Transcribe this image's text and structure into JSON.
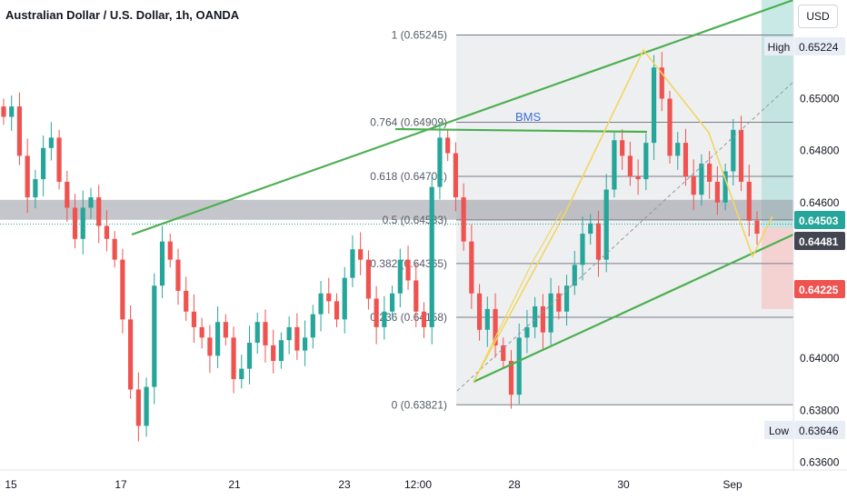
{
  "header": {
    "title": "Australian Dollar / U.S. Dollar, 1h, OANDA",
    "currency": "USD"
  },
  "chart_data": {
    "type": "candlestick",
    "symbol": "AUDUSD",
    "interval": "1h",
    "ylim": [
      0.6357,
      0.6538
    ],
    "y_ticks": [
      "0.65000",
      "0.64800",
      "0.64600",
      "0.64000",
      "0.63800",
      "0.63600"
    ],
    "x_ticks": [
      "15",
      "17",
      "21",
      "23",
      "12:00",
      "28",
      "30",
      "Sep"
    ],
    "price_close": [
      0.6493,
      0.6497,
      0.6478,
      0.6462,
      0.6469,
      0.6481,
      0.6485,
      0.6468,
      0.6458,
      0.6446,
      0.6458,
      0.6462,
      0.6451,
      0.6446,
      0.6438,
      0.6415,
      0.6388,
      0.6374,
      0.6389,
      0.6428,
      0.6445,
      0.6438,
      0.6426,
      0.6418,
      0.6412,
      0.6408,
      0.6401,
      0.6414,
      0.6408,
      0.6392,
      0.6396,
      0.6406,
      0.6414,
      0.6405,
      0.6399,
      0.6407,
      0.6412,
      0.6403,
      0.6408,
      0.6417,
      0.6425,
      0.6422,
      0.6415,
      0.6431,
      0.6442,
      0.6438,
      0.6423,
      0.6412,
      0.6418,
      0.6425,
      0.6438,
      0.643,
      0.6418,
      0.6412,
      0.6466,
      0.6485,
      0.6479,
      0.6462,
      0.6445,
      0.6425,
      0.6411,
      0.6419,
      0.6405,
      0.6399,
      0.6386,
      0.6408,
      0.6412,
      0.642,
      0.641,
      0.6425,
      0.6418,
      0.6428,
      0.6436,
      0.6448,
      0.6452,
      0.6438,
      0.6465,
      0.6484,
      0.6478,
      0.647,
      0.6469,
      0.6483,
      0.6512,
      0.65,
      0.6478,
      0.6483,
      0.647,
      0.6463,
      0.6475,
      0.6468,
      0.646,
      0.6472,
      0.6488,
      0.6468,
      0.6453,
      0.6448
    ],
    "levels": [
      {
        "name": "High",
        "label": "High",
        "value": "0.65224"
      },
      {
        "name": "Last",
        "label": "",
        "value": "0.64503"
      },
      {
        "name": "Bid",
        "label": "",
        "value": "0.64481"
      },
      {
        "name": "Target",
        "label": "",
        "value": "0.64225"
      },
      {
        "name": "Low",
        "label": "Low",
        "value": "0.63646"
      }
    ],
    "fibonacci": [
      {
        "label": "1 (0.65245)",
        "value": 0.65245
      },
      {
        "label": "0.764 (0.64909)",
        "value": 0.64909
      },
      {
        "label": "0.618 (0.64701)",
        "value": 0.64701
      },
      {
        "label": "0.5 (0.64533)",
        "value": 0.64533
      },
      {
        "label": "0.382 (0.64365)",
        "value": 0.64365
      },
      {
        "label": "0.236 (0.64158)",
        "value": 0.64158
      },
      {
        "label": "0 (0.63821)",
        "value": 0.63821
      }
    ],
    "annotations": [
      {
        "text": "BMS"
      }
    ],
    "colors": {
      "up": "#26a69a",
      "down": "#ef5350",
      "trend": "#4caf50",
      "pattern": "#f1d660",
      "sr_zone": "#9598a1",
      "bms": "#3b6fd8",
      "last_tag": "#26a69a",
      "bid_tag": "#434651",
      "target_tag": "#ef5350"
    }
  }
}
